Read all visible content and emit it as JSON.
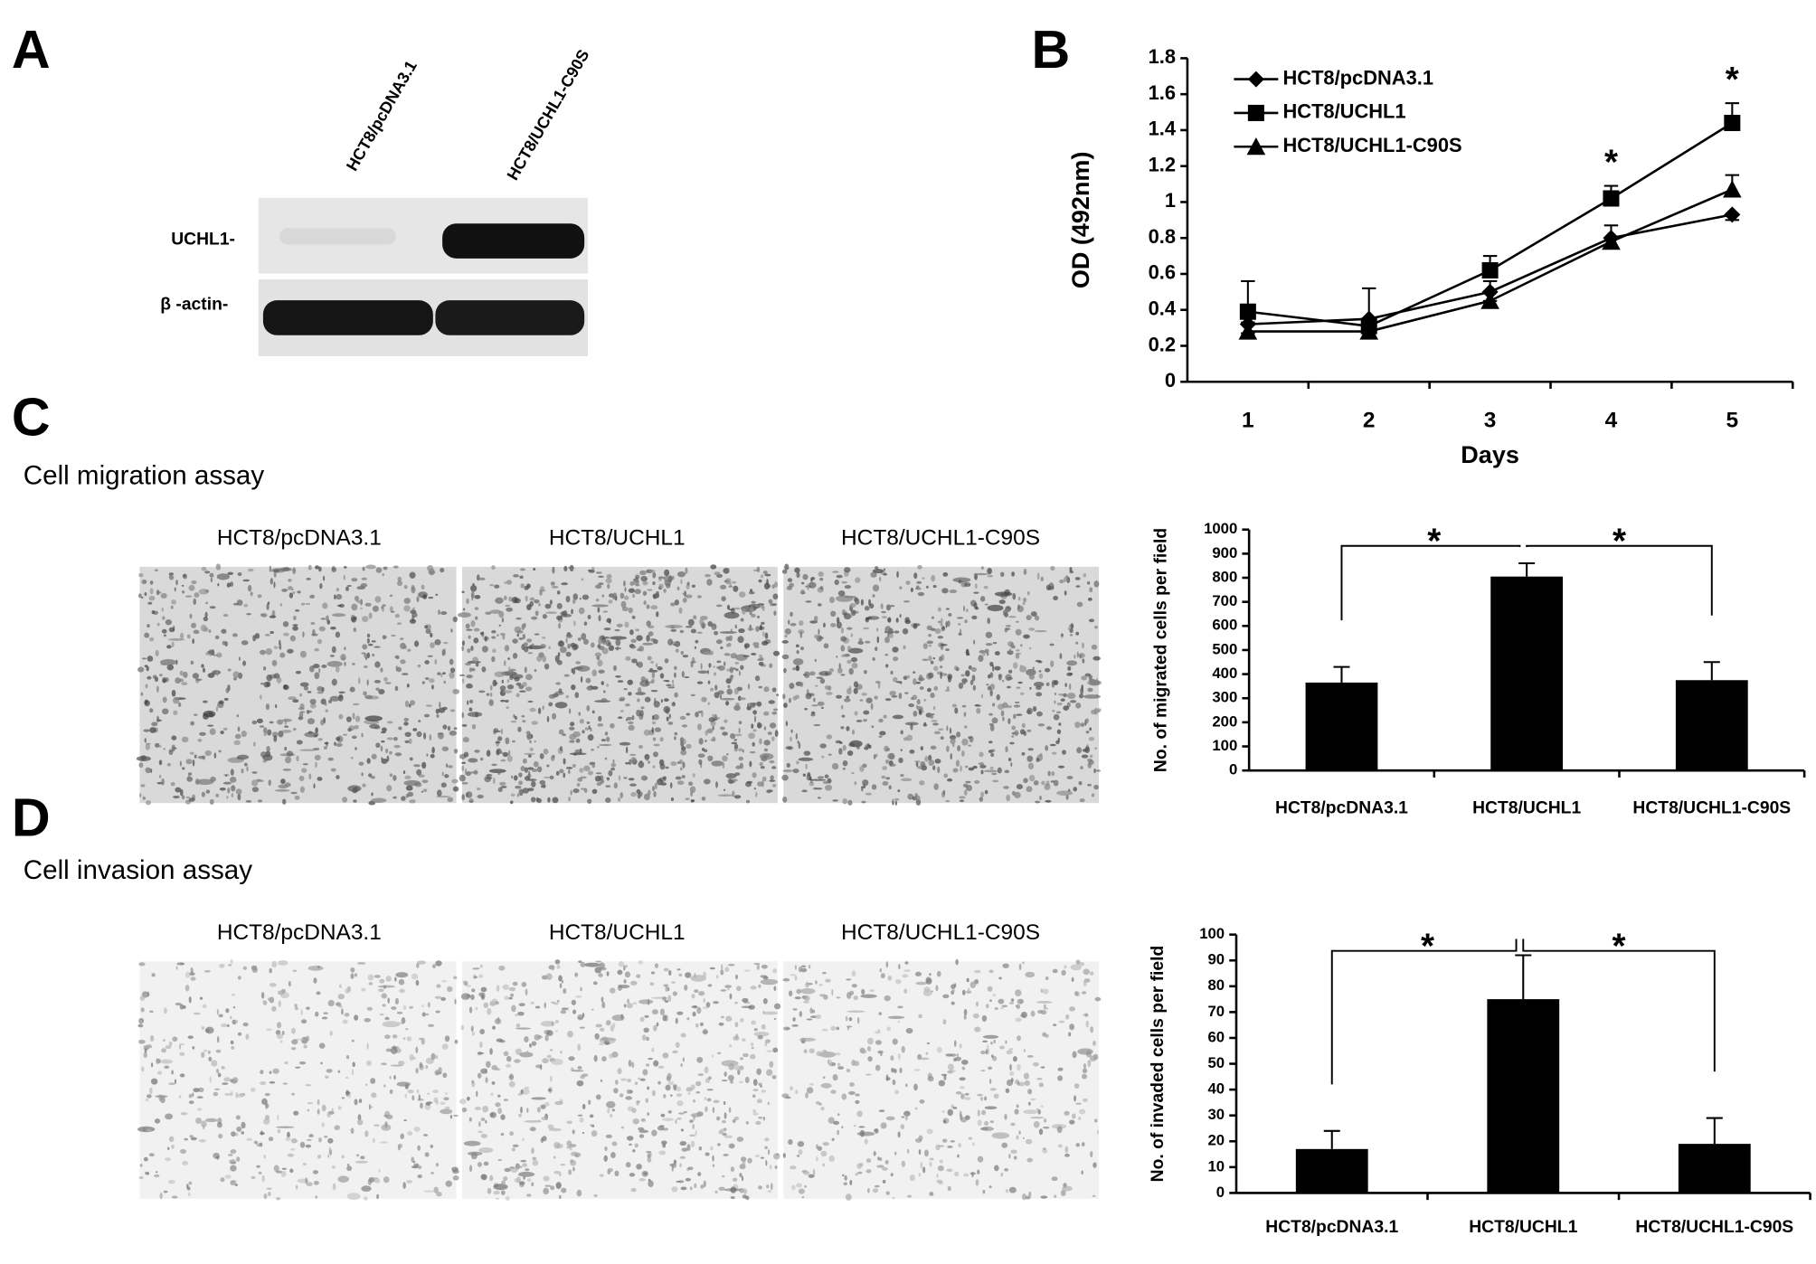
{
  "panel_labels": [
    "A",
    "B",
    "C",
    "D"
  ],
  "western_blot": {
    "lanes": [
      "HCT8/pcDNA3.1",
      "HCT8/UCHL1-C90S"
    ],
    "rows": [
      "UCHL1-",
      "β -actin-"
    ]
  },
  "migration": {
    "title": "Cell migration assay",
    "image_labels": [
      "HCT8/pcDNA3.1",
      "HCT8/UCHL1",
      "HCT8/UCHL1-C90S"
    ]
  },
  "invasion": {
    "title": "Cell invasion assay",
    "image_labels": [
      "HCT8/pcDNA3.1",
      "HCT8/UCHL1",
      "HCT8/UCHL1-C90S"
    ]
  },
  "chart_data": [
    {
      "type": "line",
      "x_label": "Days",
      "y_label": "OD (492nm)",
      "categories": [
        "1",
        "2",
        "3",
        "4",
        "5"
      ],
      "series": [
        {
          "name": "HCT8/pcDNA3.1",
          "color": "#000000",
          "marker": "diamond",
          "values": [
            0.32,
            0.35,
            0.5,
            0.8,
            0.93
          ],
          "errors": [
            0.05,
            0.05,
            0.05,
            0.05,
            0.03
          ]
        },
        {
          "name": "HCT8/UCHL1",
          "color": "#000000",
          "marker": "square",
          "values": [
            0.39,
            0.31,
            0.62,
            1.02,
            1.44
          ],
          "errors": [
            0.17,
            0.21,
            0.08,
            0.07,
            0.11
          ]
        },
        {
          "name": "HCT8/UCHL1-C90S",
          "color": "#000000",
          "marker": "triangle",
          "values": [
            0.28,
            0.28,
            0.45,
            0.78,
            1.07
          ],
          "errors": [
            0.05,
            0.06,
            0.11,
            0.09,
            0.08
          ]
        }
      ],
      "ylim": [
        0,
        1.8
      ],
      "yticks": [
        0,
        0.2,
        0.4,
        0.6,
        0.8,
        1,
        1.2,
        1.4,
        1.6,
        1.8
      ],
      "legend": "upper left",
      "annotations": [
        {
          "text": "*",
          "x": "4"
        },
        {
          "text": "*",
          "x": "5"
        }
      ]
    },
    {
      "type": "bar",
      "y_label": "No. of migrated cells per field",
      "categories": [
        "HCT8/pcDNA3.1",
        "HCT8/UCHL1",
        "HCT8/UCHL1-C90S"
      ],
      "values": [
        365,
        805,
        375
      ],
      "errors": [
        65,
        55,
        75
      ],
      "color": "#000000",
      "ylim": [
        0,
        1000
      ],
      "yticks": [
        0,
        100,
        200,
        300,
        400,
        500,
        600,
        700,
        800,
        900,
        1000
      ],
      "annotations": [
        {
          "text": "*",
          "between": [
            "HCT8/pcDNA3.1",
            "HCT8/UCHL1"
          ]
        },
        {
          "text": "*",
          "between": [
            "HCT8/UCHL1",
            "HCT8/UCHL1-C90S"
          ]
        }
      ]
    },
    {
      "type": "bar",
      "y_label": "No. of invaded cells per field",
      "categories": [
        "HCT8/pcDNA3.1",
        "HCT8/UCHL1",
        "HCT8/UCHL1-C90S"
      ],
      "values": [
        17,
        75,
        19
      ],
      "errors": [
        7,
        17,
        10
      ],
      "color": "#000000",
      "ylim": [
        0,
        100
      ],
      "yticks": [
        0,
        10,
        20,
        30,
        40,
        50,
        60,
        70,
        80,
        90,
        100
      ],
      "annotations": [
        {
          "text": "*",
          "between": [
            "HCT8/pcDNA3.1",
            "HCT8/UCHL1"
          ]
        },
        {
          "text": "*",
          "between": [
            "HCT8/UCHL1",
            "HCT8/UCHL1-C90S"
          ]
        }
      ]
    }
  ]
}
